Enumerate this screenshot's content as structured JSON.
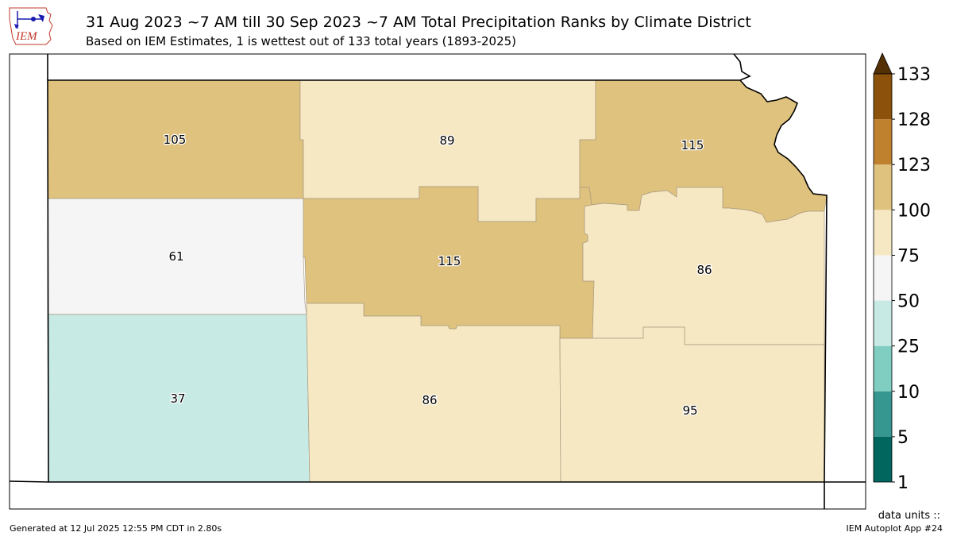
{
  "header": {
    "title": "31 Aug 2023 ~7 AM till 30 Sep 2023 ~7 AM Total Precipitation Ranks by Climate District",
    "subtitle": "Based on IEM Estimates, 1 is wettest out of 133 total years (1893-2025)",
    "logo_text": "IEM"
  },
  "map": {
    "districts": [
      {
        "rank": "105",
        "color": "#dfc27d"
      },
      {
        "rank": "89",
        "color": "#f6e8c3"
      },
      {
        "rank": "115",
        "color": "#dfc27d"
      },
      {
        "rank": "61",
        "color": "#f5f5f5"
      },
      {
        "rank": "115",
        "color": "#dfc27d"
      },
      {
        "rank": "86",
        "color": "#f6e8c3"
      },
      {
        "rank": "37",
        "color": "#c7eae5"
      },
      {
        "rank": "86",
        "color": "#f6e8c3"
      },
      {
        "rank": "95",
        "color": "#f6e8c3"
      }
    ]
  },
  "colorbar": {
    "ticks": [
      "1",
      "5",
      "10",
      "25",
      "50",
      "75",
      "100",
      "123",
      "128",
      "133"
    ],
    "colors": [
      "#01665e",
      "#35978f",
      "#80cdc1",
      "#c7eae5",
      "#f5f5f5",
      "#f6e8c3",
      "#dfc27d",
      "#bf812d",
      "#8c510a"
    ],
    "extend_color": "#543005"
  },
  "footer": {
    "units": "data units ::",
    "generated": "Generated at 12 Jul 2025 12:55 PM CDT in 2.80s",
    "app": "IEM Autoplot App #24"
  }
}
